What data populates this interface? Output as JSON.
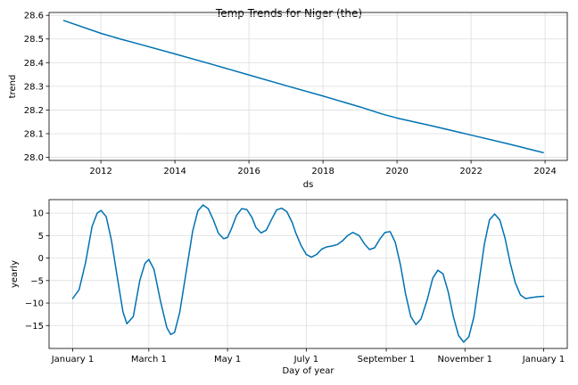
{
  "figure": {
    "title": "Temp Trends for Niger (the)",
    "line_color": "#0072B2"
  },
  "chart_data": [
    {
      "type": "line",
      "id": "trend",
      "title": "",
      "xlabel": "ds",
      "ylabel": "trend",
      "x_ticks": [
        2012,
        2014,
        2016,
        2018,
        2020,
        2022,
        2024
      ],
      "x_tick_labels": [
        "2012",
        "2014",
        "2016",
        "2018",
        "2020",
        "2022",
        "2024"
      ],
      "y_ticks": [
        28.0,
        28.1,
        28.2,
        28.3,
        28.4,
        28.5,
        28.6
      ],
      "y_tick_labels": [
        "28.0",
        "28.1",
        "28.2",
        "28.3",
        "28.4",
        "28.5",
        "28.6"
      ],
      "xlim": [
        2010.6,
        2024.6
      ],
      "ylim": [
        27.987,
        28.612
      ],
      "grid": true,
      "series": [
        {
          "x": [
            2011.0,
            2012.0,
            2012.5,
            2013.0,
            2014.0,
            2015.0,
            2016.0,
            2017.0,
            2018.0,
            2019.0,
            2019.6,
            2020.0,
            2021.0,
            2022.0,
            2023.0,
            2023.95
          ],
          "y": [
            28.578,
            28.524,
            28.501,
            28.48,
            28.437,
            28.393,
            28.348,
            28.303,
            28.259,
            28.213,
            28.183,
            28.166,
            28.131,
            28.094,
            28.057,
            28.02
          ]
        }
      ]
    },
    {
      "type": "line",
      "id": "yearly",
      "title": "",
      "xlabel": "Day of year",
      "ylabel": "yearly",
      "x_ticks": [
        0,
        59,
        120,
        181,
        243,
        304,
        365
      ],
      "x_tick_labels": [
        "January 1",
        "March 1",
        "May 1",
        "July 1",
        "September 1",
        "November 1",
        "January 1"
      ],
      "y_ticks": [
        -15,
        -10,
        -5,
        0,
        5,
        10
      ],
      "y_tick_labels": [
        "−15",
        "−10",
        "−5",
        "0",
        "5",
        "10"
      ],
      "xlim": [
        -18.3,
        383.3
      ],
      "ylim": [
        -20.1,
        13.0
      ],
      "grid": true,
      "series": [
        {
          "x": [
            0,
            5,
            10,
            15,
            19,
            22,
            26,
            30,
            35,
            39,
            42,
            47,
            52,
            56,
            59,
            63,
            68,
            73,
            76,
            79,
            83,
            88,
            93,
            97,
            101,
            105,
            109,
            113,
            117,
            120,
            123,
            127,
            131,
            135,
            139,
            142,
            146,
            150,
            154,
            158,
            162,
            166,
            170,
            173,
            177,
            181,
            185,
            189,
            193,
            197,
            201,
            205,
            209,
            213,
            217,
            222,
            226,
            230,
            234,
            238,
            242,
            246,
            250,
            254,
            258,
            262,
            266,
            270,
            275,
            279,
            283,
            287,
            291,
            295,
            299,
            303,
            307,
            311,
            315,
            319,
            323,
            327,
            331,
            335,
            339,
            343,
            347,
            351,
            355,
            360,
            365
          ],
          "y": [
            -9.0,
            -7.0,
            -1.0,
            7.0,
            10.0,
            10.6,
            9.2,
            4.0,
            -5.0,
            -12.0,
            -14.6,
            -13.0,
            -5.0,
            -1.2,
            -0.3,
            -2.5,
            -9.5,
            -15.5,
            -17.0,
            -16.5,
            -12.0,
            -3.0,
            6.0,
            10.5,
            11.8,
            11.0,
            8.5,
            5.5,
            4.3,
            4.6,
            6.5,
            9.5,
            11.0,
            10.8,
            9.0,
            6.8,
            5.6,
            6.2,
            8.5,
            10.7,
            11.1,
            10.3,
            8.0,
            5.5,
            2.8,
            0.8,
            0.2,
            0.8,
            2.0,
            2.5,
            2.7,
            3.0,
            3.8,
            5.0,
            5.7,
            5.0,
            3.2,
            1.9,
            2.3,
            4.2,
            5.7,
            5.9,
            3.5,
            -1.5,
            -8.0,
            -13.0,
            -14.8,
            -13.5,
            -9.0,
            -4.5,
            -2.7,
            -3.5,
            -7.5,
            -13.0,
            -17.2,
            -18.7,
            -17.5,
            -13.0,
            -5.0,
            3.0,
            8.5,
            9.8,
            8.5,
            4.5,
            -1.0,
            -5.5,
            -8.2,
            -9.0,
            -8.8,
            -8.6,
            -8.5
          ]
        }
      ]
    }
  ]
}
